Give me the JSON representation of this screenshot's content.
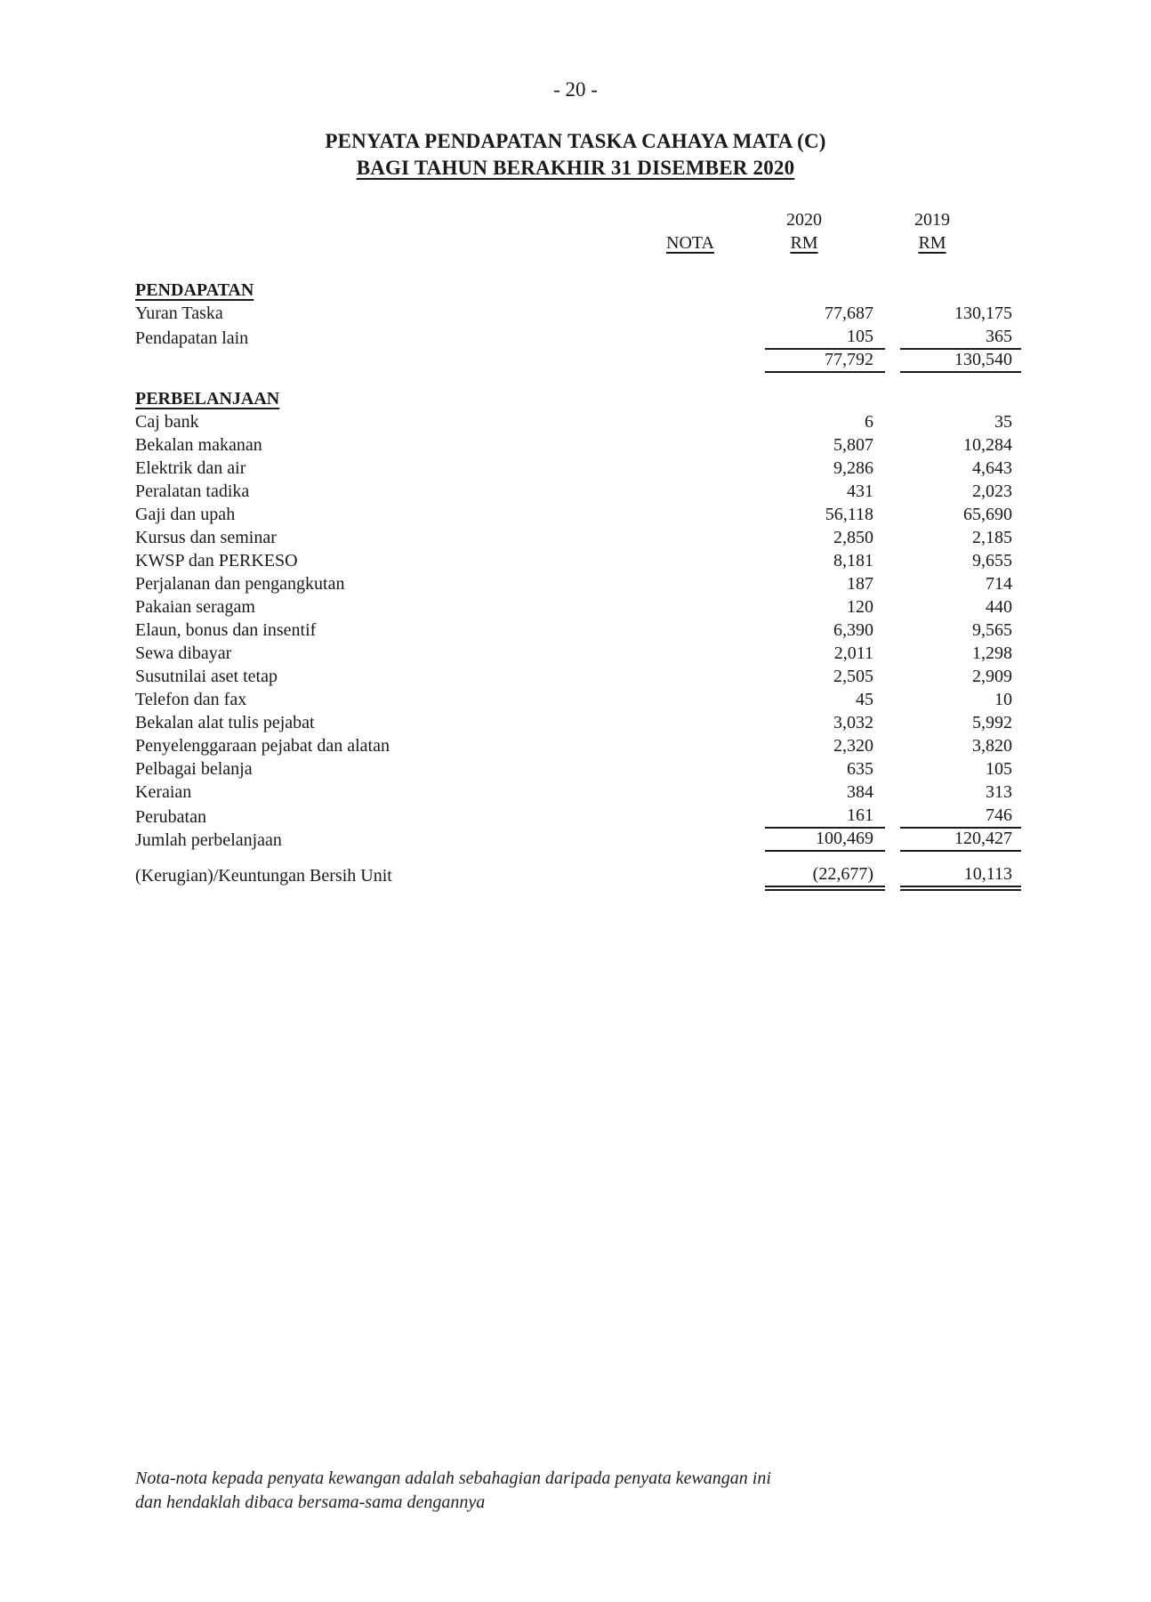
{
  "page": {
    "number_display": "- 20 -"
  },
  "header": {
    "title": "PENYATA PENDAPATAN TASKA CAHAYA MATA (C)",
    "subtitle": "BAGI TAHUN BERAKHIR 31 DISEMBER 2020"
  },
  "columns": {
    "nota": "NOTA",
    "y2020": "2020",
    "y2019": "2019",
    "currency": "RM"
  },
  "statement": {
    "rows": [
      {
        "kind": "section",
        "label": "PENDAPATAN",
        "nota": "",
        "y2020": "",
        "y2019": "",
        "rule": "none"
      },
      {
        "kind": "item",
        "label": "Yuran Taska",
        "nota": "",
        "y2020": "77,687",
        "y2019": "130,175",
        "rule": "none"
      },
      {
        "kind": "item",
        "label": "Pendapatan lain",
        "nota": "",
        "y2020": "105",
        "y2019": "365",
        "rule": "single"
      },
      {
        "kind": "subtotal",
        "label": "",
        "nota": "",
        "y2020": "77,792",
        "y2019": "130,540",
        "rule": "single"
      },
      {
        "kind": "spacer",
        "h": 18
      },
      {
        "kind": "section",
        "label": "PERBELANJAAN",
        "nota": "",
        "y2020": "",
        "y2019": "",
        "rule": "none"
      },
      {
        "kind": "item",
        "label": "Caj bank",
        "nota": "",
        "y2020": "6",
        "y2019": "35",
        "rule": "none"
      },
      {
        "kind": "item",
        "label": "Bekalan makanan",
        "nota": "",
        "y2020": "5,807",
        "y2019": "10,284",
        "rule": "none"
      },
      {
        "kind": "item",
        "label": "Elektrik dan air",
        "nota": "",
        "y2020": "9,286",
        "y2019": "4,643",
        "rule": "none"
      },
      {
        "kind": "item",
        "label": "Peralatan tadika",
        "nota": "",
        "y2020": "431",
        "y2019": "2,023",
        "rule": "none"
      },
      {
        "kind": "item",
        "label": "Gaji dan upah",
        "nota": "",
        "y2020": "56,118",
        "y2019": "65,690",
        "rule": "none"
      },
      {
        "kind": "item",
        "label": "Kursus dan seminar",
        "nota": "",
        "y2020": "2,850",
        "y2019": "2,185",
        "rule": "none"
      },
      {
        "kind": "item",
        "label": "KWSP dan PERKESO",
        "nota": "",
        "y2020": "8,181",
        "y2019": "9,655",
        "rule": "none"
      },
      {
        "kind": "item",
        "label": "Perjalanan dan pengangkutan",
        "nota": "",
        "y2020": "187",
        "y2019": "714",
        "rule": "none"
      },
      {
        "kind": "item",
        "label": "Pakaian seragam",
        "nota": "",
        "y2020": "120",
        "y2019": "440",
        "rule": "none"
      },
      {
        "kind": "item",
        "label": "Elaun, bonus dan insentif",
        "nota": "",
        "y2020": "6,390",
        "y2019": "9,565",
        "rule": "none"
      },
      {
        "kind": "item",
        "label": "Sewa dibayar",
        "nota": "",
        "y2020": "2,011",
        "y2019": "1,298",
        "rule": "none"
      },
      {
        "kind": "item",
        "label": "Susutnilai aset tetap",
        "nota": "",
        "y2020": "2,505",
        "y2019": "2,909",
        "rule": "none"
      },
      {
        "kind": "item",
        "label": "Telefon dan fax",
        "nota": "",
        "y2020": "45",
        "y2019": "10",
        "rule": "none"
      },
      {
        "kind": "item",
        "label": "Bekalan alat tulis pejabat",
        "nota": "",
        "y2020": "3,032",
        "y2019": "5,992",
        "rule": "none"
      },
      {
        "kind": "item",
        "label": "Penyelenggaraan pejabat dan alatan",
        "nota": "",
        "y2020": "2,320",
        "y2019": "3,820",
        "rule": "none"
      },
      {
        "kind": "item",
        "label": "Pelbagai belanja",
        "nota": "",
        "y2020": "635",
        "y2019": "105",
        "rule": "none"
      },
      {
        "kind": "item",
        "label": "Keraian",
        "nota": "",
        "y2020": "384",
        "y2019": "313",
        "rule": "none"
      },
      {
        "kind": "item",
        "label": "Perubatan",
        "nota": "",
        "y2020": "161",
        "y2019": "746",
        "rule": "single"
      },
      {
        "kind": "total",
        "label": "Jumlah perbelanjaan",
        "nota": "",
        "y2020": "100,469",
        "y2019": "120,427",
        "rule": "single"
      },
      {
        "kind": "spacer",
        "h": 14
      },
      {
        "kind": "net",
        "label": "(Kerugian)/Keuntungan Bersih Unit",
        "nota": "",
        "y2020": "(22,677)",
        "y2019": "10,113",
        "rule": "double"
      }
    ]
  },
  "footnote": {
    "line1": "Nota-nota kepada penyata kewangan adalah sebahagian daripada penyata kewangan ini",
    "line2": "dan hendaklah dibaca bersama-sama dengannya"
  },
  "colors": {
    "background": "#ffffff",
    "text": "#1a1a1a",
    "rule": "#1a1a1a"
  }
}
